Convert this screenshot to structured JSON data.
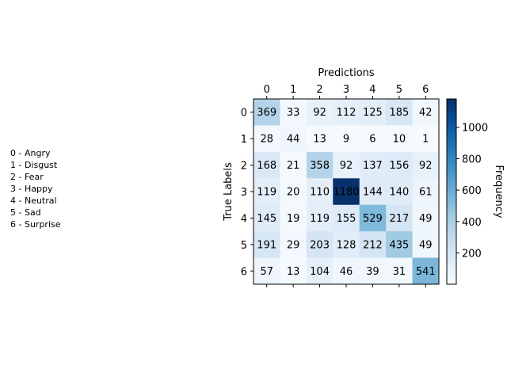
{
  "chart_data": {
    "type": "heatmap",
    "title": "",
    "xlabel": "Predictions",
    "ylabel": "True Labels",
    "x_categories": [
      "0",
      "1",
      "2",
      "3",
      "4",
      "5",
      "6"
    ],
    "y_categories": [
      "0",
      "1",
      "2",
      "3",
      "4",
      "5",
      "6"
    ],
    "values": [
      [
        369,
        33,
        92,
        112,
        125,
        185,
        42
      ],
      [
        28,
        44,
        13,
        9,
        6,
        10,
        1
      ],
      [
        168,
        21,
        358,
        92,
        137,
        156,
        92
      ],
      [
        119,
        20,
        110,
        1180,
        144,
        140,
        61
      ],
      [
        145,
        19,
        119,
        155,
        529,
        217,
        49
      ],
      [
        191,
        29,
        203,
        128,
        212,
        435,
        49
      ],
      [
        57,
        13,
        104,
        46,
        39,
        31,
        541
      ]
    ],
    "colormap": "Blues",
    "colorbar": {
      "label": "Frequency",
      "range": [
        1,
        1180
      ],
      "ticks": [
        200,
        400,
        600,
        800,
        1000
      ]
    },
    "legend": [
      "0 - Angry",
      "1 - Disgust",
      "2 - Fear",
      "3 - Happy",
      "4 - Neutral",
      "5 - Sad",
      "6 - Surprise"
    ]
  }
}
